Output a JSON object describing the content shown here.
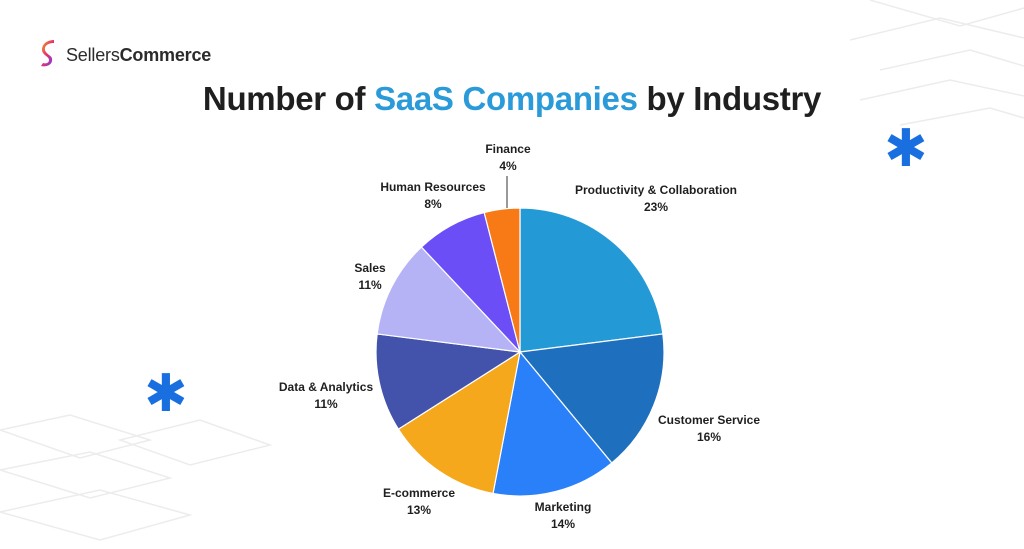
{
  "brand": {
    "name_light": "Sellers",
    "name_bold": "Commerce"
  },
  "title": {
    "before": "Number of ",
    "highlight": "SaaS Companies",
    "after": " by Industry",
    "highlight_color": "#2a9bd8"
  },
  "decor": {
    "asterisk_glyph": "✱",
    "asterisk_color": "#1a6fe0"
  },
  "chart_data": {
    "type": "pie",
    "title": "Number of SaaS Companies by Industry",
    "start_angle_deg": 0,
    "direction": "clockwise",
    "legend": "none",
    "slices": [
      {
        "label": "Productivity & Collaboration",
        "value": 23,
        "display": "23%",
        "color": "#239ad6"
      },
      {
        "label": "Customer Service",
        "value": 16,
        "display": "16%",
        "color": "#1e6fbd"
      },
      {
        "label": "Marketing",
        "value": 14,
        "display": "14%",
        "color": "#2a80f8"
      },
      {
        "label": "E-commerce",
        "value": 13,
        "display": "13%",
        "color": "#f6a81c"
      },
      {
        "label": "Data & Analytics",
        "value": 11,
        "display": "11%",
        "color": "#4352ab"
      },
      {
        "label": "Sales",
        "value": 11,
        "display": "11%",
        "color": "#b5b3f6"
      },
      {
        "label": "Human Resources",
        "value": 8,
        "display": "8%",
        "color": "#6b4ef6"
      },
      {
        "label": "Finance",
        "value": 4,
        "display": "4%",
        "color": "#f77a16"
      }
    ]
  }
}
